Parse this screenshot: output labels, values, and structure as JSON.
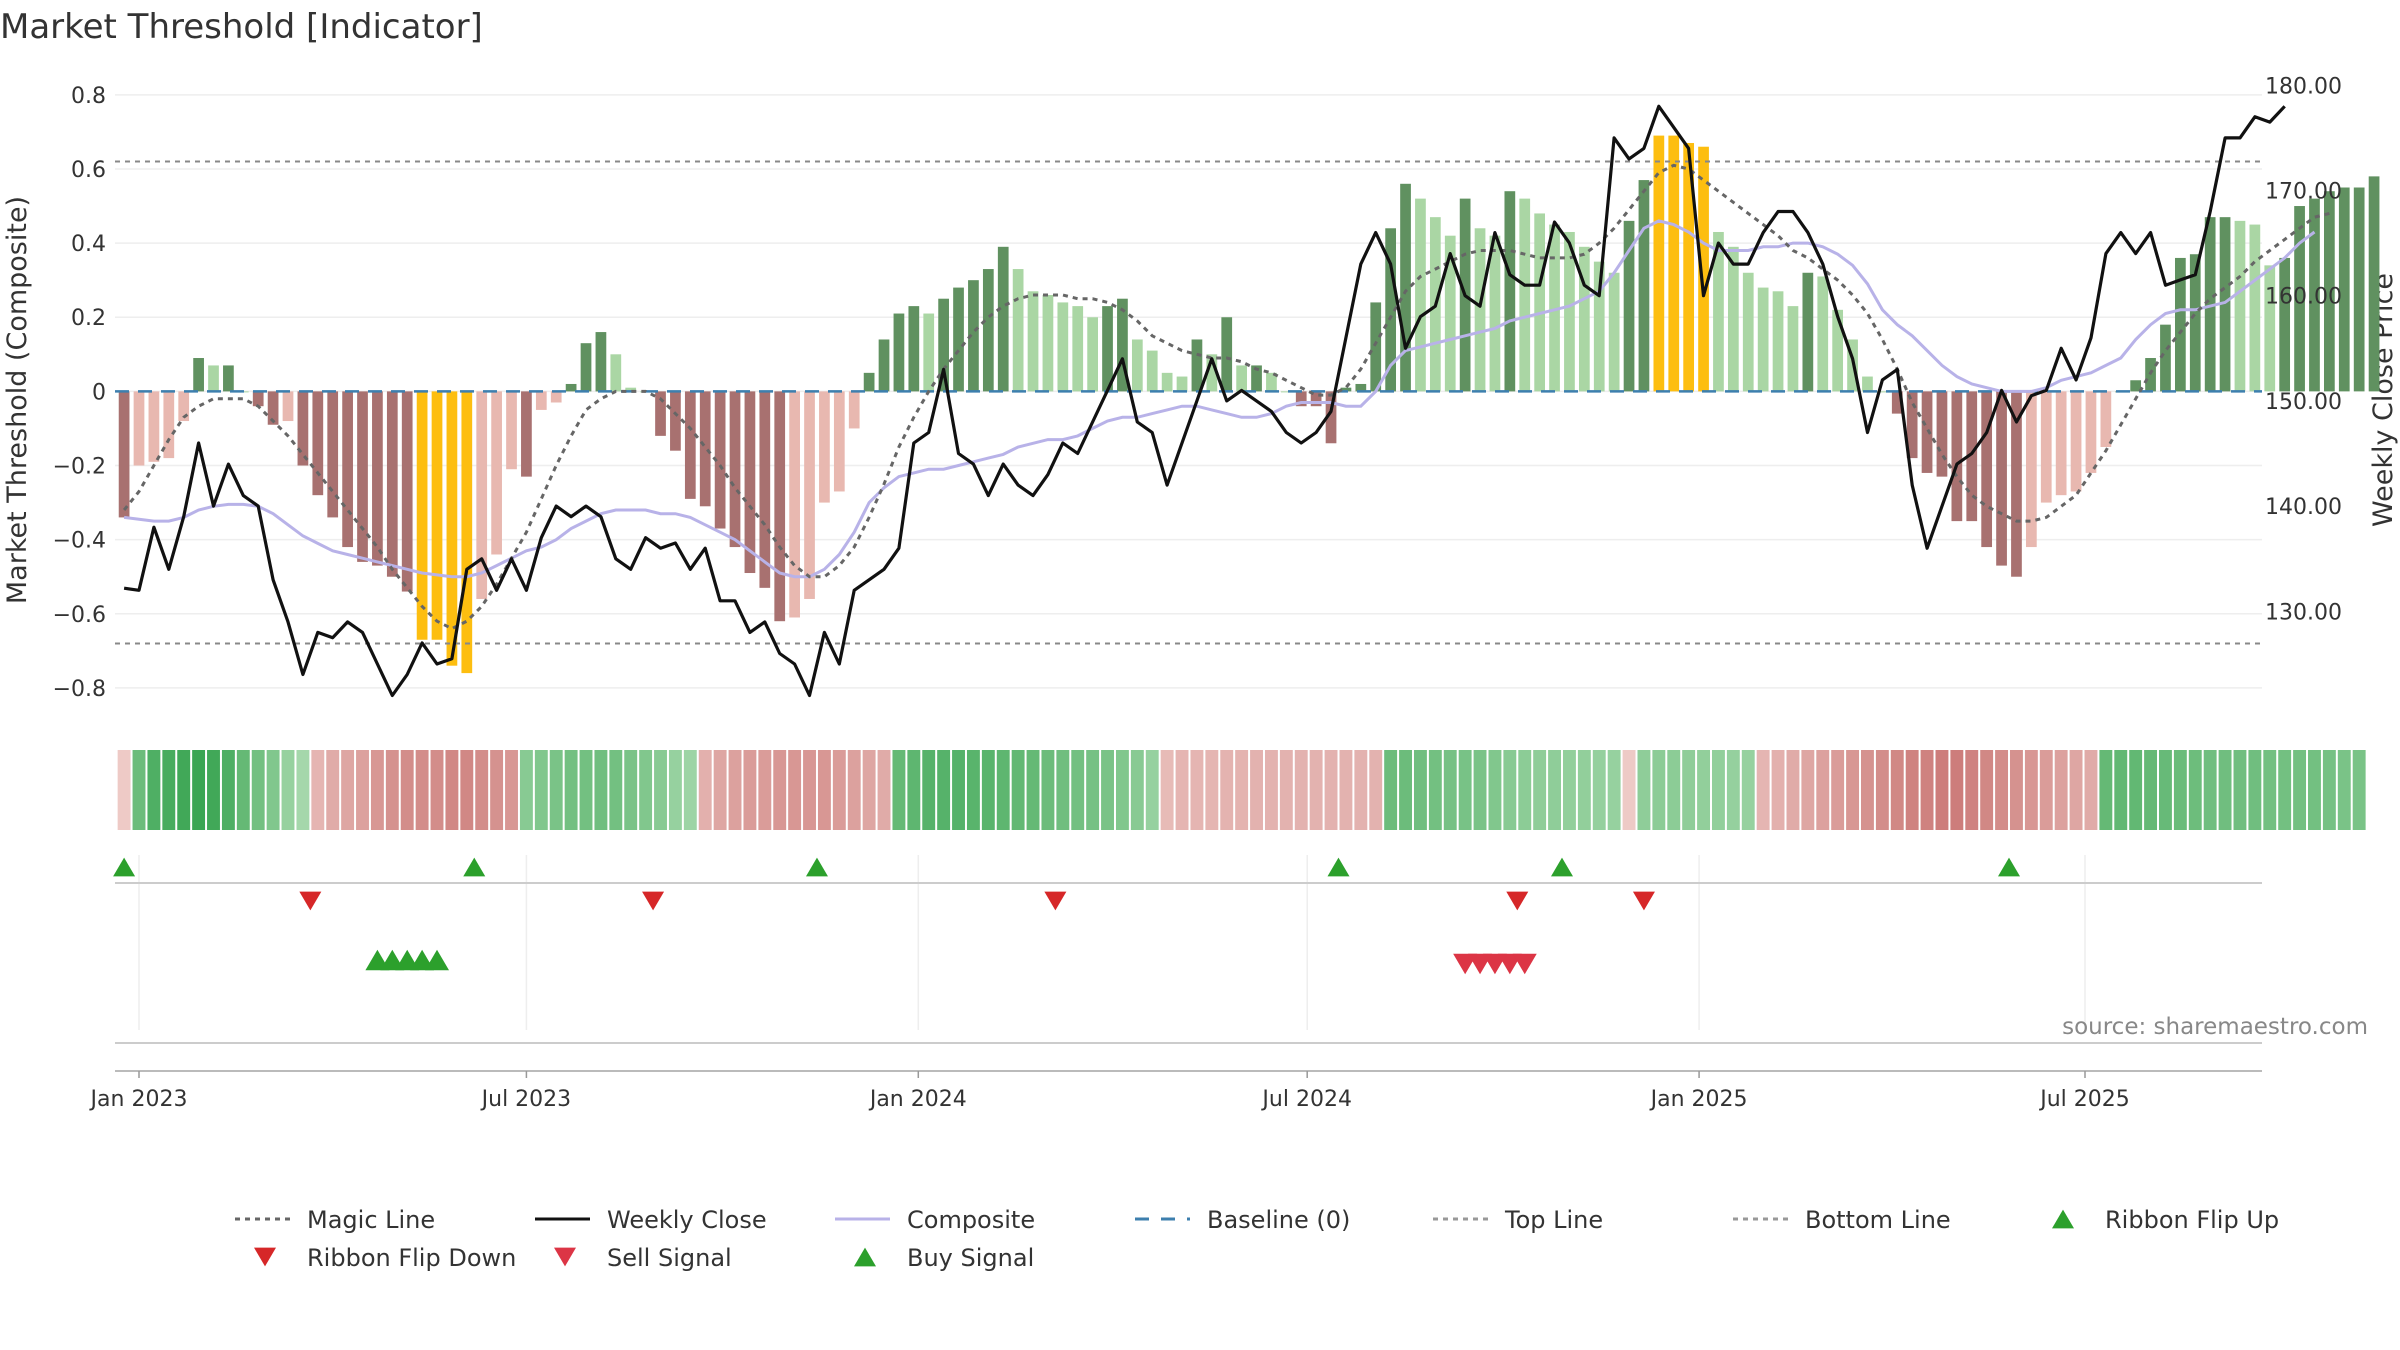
{
  "chart_data": {
    "type": "bar",
    "title": "Market Threshold [Indicator]",
    "ylabel_left": "Market Threshold (Composite)",
    "ylabel_right": "Weekly Close Price",
    "source": "source: sharemaestro.com",
    "left_axis": {
      "range": [
        -0.9,
        0.84
      ],
      "ticks": [
        0.8,
        0.6,
        0.4,
        0.2,
        0,
        -0.2,
        -0.4,
        -0.6,
        -0.8
      ],
      "tick_labels": [
        "0.8",
        "0.6",
        "0.4",
        "0.2",
        "0",
        "−0.2",
        "−0.4",
        "−0.6",
        "−0.8"
      ]
    },
    "right_axis": {
      "range": [
        119.2,
        180.5
      ],
      "ticks": [
        180,
        170,
        160,
        150,
        140,
        130
      ],
      "tick_labels": [
        "180.00",
        "170.00",
        "160.00",
        "150.00",
        "140.00",
        "130.00"
      ]
    },
    "x_ticks": [
      {
        "week": 0,
        "label": "Jan 2023"
      },
      {
        "week": 26,
        "label": "Jul 2023"
      },
      {
        "week": 52.3,
        "label": "Jan 2024"
      },
      {
        "week": 78.4,
        "label": "Jul 2024"
      },
      {
        "week": 104.7,
        "label": "Jan 2025"
      },
      {
        "week": 130.6,
        "label": "Jul 2025"
      }
    ],
    "top_line": 0.62,
    "bottom_line": -0.68,
    "baseline": 0,
    "weeks_start": -1,
    "composite": [
      -0.34,
      -0.2,
      -0.19,
      -0.18,
      -0.08,
      0.09,
      0.07,
      0.07,
      0.0,
      -0.04,
      -0.09,
      -0.08,
      -0.2,
      -0.28,
      -0.34,
      -0.42,
      -0.46,
      -0.47,
      -0.5,
      -0.54,
      -0.67,
      -0.67,
      -0.74,
      -0.76,
      -0.56,
      -0.44,
      -0.21,
      -0.23,
      -0.05,
      -0.03,
      0.02,
      0.13,
      0.16,
      0.1,
      0.01,
      0.0,
      -0.12,
      -0.16,
      -0.29,
      -0.31,
      -0.37,
      -0.42,
      -0.49,
      -0.53,
      -0.62,
      -0.61,
      -0.56,
      -0.3,
      -0.27,
      -0.1,
      0.05,
      0.14,
      0.21,
      0.23,
      0.21,
      0.25,
      0.28,
      0.3,
      0.33,
      0.39,
      0.33,
      0.27,
      0.26,
      0.24,
      0.23,
      0.2,
      0.23,
      0.25,
      0.14,
      0.11,
      0.05,
      0.04,
      0.14,
      0.1,
      0.2,
      0.07,
      0.07,
      0.05,
      0.0,
      -0.04,
      -0.04,
      -0.14,
      0.01,
      0.02,
      0.24,
      0.44,
      0.56,
      0.52,
      0.47,
      0.42,
      0.52,
      0.44,
      0.42,
      0.54,
      0.52,
      0.48,
      0.45,
      0.43,
      0.39,
      0.35,
      0.32,
      0.46,
      0.57,
      0.69,
      0.69,
      0.67,
      0.66,
      0.43,
      0.39,
      0.32,
      0.28,
      0.27,
      0.23,
      0.32,
      0.31,
      0.22,
      0.14,
      0.04,
      0.0,
      -0.06,
      -0.18,
      -0.22,
      -0.23,
      -0.35,
      -0.35,
      -0.42,
      -0.47,
      -0.5,
      -0.42,
      -0.3,
      -0.28,
      -0.27,
      -0.22,
      -0.15,
      0.0,
      0.03,
      0.09,
      0.18,
      0.36,
      0.37,
      0.47,
      0.47,
      0.46,
      0.45,
      0.34,
      0.36,
      0.5,
      0.52,
      0.54,
      0.55,
      0.55,
      0.58
    ],
    "bar_regime_colors": [
      {
        "name": "strong-up",
        "color": "#609160"
      },
      {
        "name": "weak-up",
        "color": "#aad6a4"
      },
      {
        "name": "weak-down",
        "color": "#e8b8b0"
      },
      {
        "name": "strong-down",
        "color": "#a87170"
      },
      {
        "name": "extreme",
        "color": "#fdbe10"
      }
    ],
    "weekly_close": [
      132.2,
      132.0,
      138.0,
      134.0,
      139.0,
      146.0,
      140.0,
      144.0,
      141.0,
      140.0,
      133.0,
      129.0,
      124.0,
      128.0,
      127.5,
      129.0,
      128.0,
      125.0,
      122.0,
      124.0,
      127.0,
      125.0,
      125.5,
      134.0,
      135.0,
      132.0,
      135.0,
      132.0,
      137.0,
      140.0,
      139.0,
      140.0,
      139.0,
      135.0,
      134.0,
      137.0,
      136.0,
      136.5,
      134.0,
      136.0,
      131.0,
      131.0,
      128.0,
      129.0,
      126.0,
      125.0,
      122.0,
      128.0,
      125.0,
      132.0,
      133.0,
      134.0,
      136.0,
      146.0,
      147.0,
      153.0,
      145.0,
      144.0,
      141.0,
      144.0,
      142.0,
      141.0,
      143.0,
      146.0,
      145.0,
      148.0,
      151.0,
      154.0,
      148.0,
      147.0,
      142.0,
      146.0,
      150.0,
      154.0,
      150.0,
      151.0,
      150.0,
      149.0,
      147.0,
      146.0,
      147.0,
      149.0,
      156.0,
      163.0,
      166.0,
      163.0,
      155.0,
      158.0,
      159.0,
      164.0,
      160.0,
      159.0,
      166.0,
      162.0,
      161.0,
      161.0,
      167.0,
      165.0,
      161.0,
      160.0,
      175.0,
      173.0,
      174.0,
      178.0,
      176.0,
      174.0,
      160.0,
      165.0,
      163.0,
      163.0,
      166.0,
      168.0,
      168.0,
      166.0,
      163.0,
      158.0,
      154.0,
      147.0,
      152.0,
      153.0,
      142.0,
      136.0,
      140.0,
      144.0,
      145.0,
      147.0,
      151.0,
      148.0,
      150.5,
      151.0,
      155.0,
      152.0,
      156.0,
      164.0,
      166.0,
      164.0,
      166.0,
      161.0,
      161.5,
      162.0,
      168.0,
      175.0,
      175.0,
      177.0,
      176.5,
      178.0
    ],
    "composite_line": [
      -0.34,
      -0.345,
      -0.35,
      -0.35,
      -0.34,
      -0.32,
      -0.31,
      -0.305,
      -0.305,
      -0.31,
      -0.33,
      -0.36,
      -0.39,
      -0.41,
      -0.43,
      -0.44,
      -0.45,
      -0.46,
      -0.47,
      -0.48,
      -0.49,
      -0.495,
      -0.5,
      -0.5,
      -0.49,
      -0.47,
      -0.45,
      -0.43,
      -0.42,
      -0.4,
      -0.37,
      -0.35,
      -0.33,
      -0.32,
      -0.32,
      -0.32,
      -0.33,
      -0.33,
      -0.34,
      -0.36,
      -0.38,
      -0.4,
      -0.43,
      -0.46,
      -0.49,
      -0.5,
      -0.5,
      -0.48,
      -0.44,
      -0.38,
      -0.3,
      -0.26,
      -0.23,
      -0.22,
      -0.21,
      -0.21,
      -0.2,
      -0.19,
      -0.18,
      -0.17,
      -0.15,
      -0.14,
      -0.13,
      -0.13,
      -0.12,
      -0.1,
      -0.08,
      -0.07,
      -0.07,
      -0.06,
      -0.05,
      -0.04,
      -0.04,
      -0.05,
      -0.06,
      -0.07,
      -0.07,
      -0.06,
      -0.04,
      -0.03,
      -0.03,
      -0.03,
      -0.04,
      -0.04,
      0.0,
      0.07,
      0.11,
      0.12,
      0.13,
      0.14,
      0.15,
      0.16,
      0.17,
      0.19,
      0.2,
      0.21,
      0.22,
      0.23,
      0.25,
      0.27,
      0.32,
      0.38,
      0.44,
      0.46,
      0.45,
      0.43,
      0.4,
      0.38,
      0.38,
      0.38,
      0.39,
      0.39,
      0.4,
      0.4,
      0.39,
      0.37,
      0.34,
      0.29,
      0.22,
      0.18,
      0.15,
      0.11,
      0.07,
      0.04,
      0.02,
      0.01,
      0.0,
      0.0,
      0.0,
      0.01,
      0.03,
      0.04,
      0.05,
      0.07,
      0.09,
      0.14,
      0.18,
      0.21,
      0.22,
      0.22,
      0.23,
      0.24,
      0.27,
      0.3,
      0.33,
      0.36,
      0.4,
      0.43
    ],
    "magic_line": [
      -0.32,
      -0.27,
      -0.2,
      -0.13,
      -0.07,
      -0.04,
      -0.02,
      -0.02,
      -0.02,
      -0.04,
      -0.08,
      -0.12,
      -0.17,
      -0.22,
      -0.27,
      -0.32,
      -0.37,
      -0.42,
      -0.48,
      -0.53,
      -0.58,
      -0.62,
      -0.64,
      -0.62,
      -0.58,
      -0.52,
      -0.45,
      -0.38,
      -0.29,
      -0.2,
      -0.12,
      -0.05,
      -0.02,
      0.0,
      0.0,
      0.0,
      -0.02,
      -0.06,
      -0.1,
      -0.15,
      -0.2,
      -0.26,
      -0.31,
      -0.36,
      -0.42,
      -0.47,
      -0.5,
      -0.5,
      -0.47,
      -0.42,
      -0.34,
      -0.25,
      -0.15,
      -0.07,
      0.0,
      0.06,
      0.11,
      0.16,
      0.2,
      0.23,
      0.25,
      0.26,
      0.26,
      0.26,
      0.25,
      0.25,
      0.24,
      0.22,
      0.19,
      0.15,
      0.13,
      0.11,
      0.1,
      0.09,
      0.09,
      0.08,
      0.06,
      0.05,
      0.03,
      0.01,
      -0.01,
      -0.01,
      0.01,
      0.06,
      0.13,
      0.2,
      0.27,
      0.31,
      0.33,
      0.35,
      0.37,
      0.38,
      0.38,
      0.38,
      0.37,
      0.36,
      0.36,
      0.36,
      0.37,
      0.4,
      0.44,
      0.49,
      0.54,
      0.59,
      0.61,
      0.6,
      0.57,
      0.54,
      0.51,
      0.48,
      0.45,
      0.42,
      0.38,
      0.36,
      0.33,
      0.3,
      0.26,
      0.21,
      0.14,
      0.06,
      -0.03,
      -0.1,
      -0.17,
      -0.23,
      -0.28,
      -0.31,
      -0.33,
      -0.35,
      -0.35,
      -0.34,
      -0.31,
      -0.28,
      -0.22,
      -0.16,
      -0.09,
      -0.02,
      0.05,
      0.11,
      0.16,
      0.21,
      0.25,
      0.28,
      0.31,
      0.35,
      0.38,
      0.41,
      0.44,
      0.47,
      0.48
    ],
    "ribbon": [
      -0.1,
      0.65,
      0.85,
      0.9,
      0.95,
      1.0,
      0.95,
      0.85,
      0.7,
      0.6,
      0.5,
      0.35,
      0.25,
      -0.3,
      -0.4,
      -0.45,
      -0.5,
      -0.6,
      -0.65,
      -0.7,
      -0.7,
      -0.7,
      -0.75,
      -0.75,
      -0.7,
      -0.65,
      -0.6,
      0.45,
      0.5,
      0.55,
      0.6,
      0.6,
      0.62,
      0.6,
      0.55,
      0.5,
      0.45,
      0.35,
      0.3,
      -0.35,
      -0.45,
      -0.5,
      -0.55,
      -0.55,
      -0.6,
      -0.6,
      -0.6,
      -0.6,
      -0.55,
      -0.5,
      -0.45,
      -0.4,
      0.7,
      0.75,
      0.8,
      0.8,
      0.8,
      0.78,
      0.78,
      0.75,
      0.72,
      0.7,
      0.65,
      0.62,
      0.6,
      0.58,
      0.55,
      0.5,
      0.45,
      0.35,
      -0.25,
      -0.3,
      -0.3,
      -0.3,
      -0.32,
      -0.32,
      -0.33,
      -0.33,
      -0.33,
      -0.33,
      -0.33,
      -0.33,
      -0.33,
      -0.33,
      -0.33,
      0.65,
      0.65,
      0.62,
      0.6,
      0.58,
      0.56,
      0.55,
      0.5,
      0.45,
      0.42,
      0.4,
      0.4,
      0.38,
      0.38,
      0.36,
      0.35,
      -0.1,
      0.4,
      0.42,
      0.42,
      0.4,
      0.38,
      0.38,
      0.36,
      0.35,
      -0.3,
      -0.35,
      -0.4,
      -0.45,
      -0.5,
      -0.55,
      -0.6,
      -0.65,
      -0.7,
      -0.75,
      -0.8,
      -0.8,
      -0.85,
      -0.85,
      -0.8,
      -0.75,
      -0.7,
      -0.65,
      -0.6,
      -0.55,
      -0.5,
      -0.45,
      -0.4,
      0.7,
      0.72,
      0.72,
      0.7,
      0.68,
      0.66,
      0.64,
      0.62,
      0.62,
      0.62,
      0.62,
      0.6,
      0.6,
      0.6,
      0.6,
      0.58,
      0.55,
      0.55
    ],
    "ribbon_flip_up": [
      -1,
      22.5,
      45.5,
      80.5,
      95.5,
      125.5
    ],
    "ribbon_flip_down": [
      11.5,
      34.5,
      61.5,
      92.5,
      101
    ],
    "buy_signal": [
      16,
      17,
      18,
      19,
      20
    ],
    "sell_signal": [
      89,
      90,
      91,
      92,
      93
    ],
    "legend": [
      {
        "label": "Magic Line",
        "marker": "dotted-line",
        "color": "#666666"
      },
      {
        "label": "Weekly Close",
        "marker": "solid-line",
        "color": "#111111"
      },
      {
        "label": "Composite",
        "marker": "solid-line",
        "color": "#b8b2e8"
      },
      {
        "label": "Baseline (0)",
        "marker": "dashed-line",
        "color": "#3d7fae"
      },
      {
        "label": "Top Line",
        "marker": "dotted-line",
        "color": "#999999"
      },
      {
        "label": "Bottom Line",
        "marker": "dotted-line",
        "color": "#999999"
      },
      {
        "label": "Ribbon Flip Up",
        "marker": "triangle-up",
        "color": "#2ca02c"
      },
      {
        "label": "Ribbon Flip Down",
        "marker": "triangle-down",
        "color": "#d62728"
      },
      {
        "label": "Sell Signal",
        "marker": "triangle-down",
        "color": "#dc3545"
      },
      {
        "label": "Buy Signal",
        "marker": "triangle-up",
        "color": "#2ca02c"
      }
    ]
  }
}
